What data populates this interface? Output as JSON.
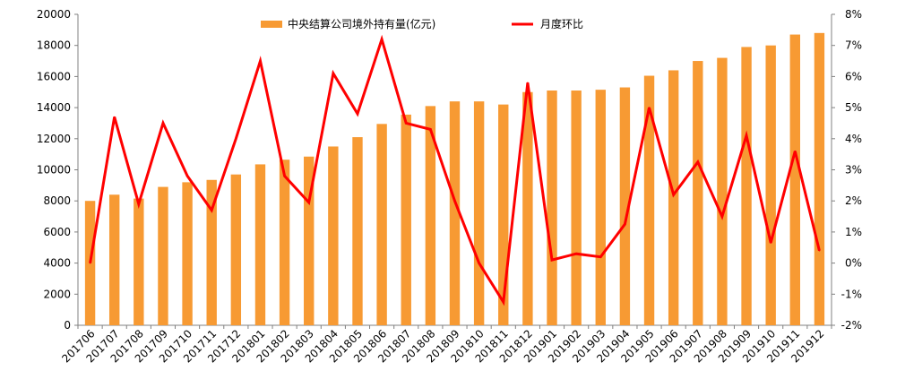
{
  "chart_data": {
    "type": "bar+line",
    "categories": [
      "201706",
      "201707",
      "201708",
      "201709",
      "201710",
      "201711",
      "201712",
      "201801",
      "201802",
      "201803",
      "201804",
      "201805",
      "201806",
      "201807",
      "201808",
      "201809",
      "201810",
      "201811",
      "201812",
      "201901",
      "201902",
      "201903",
      "201904",
      "201905",
      "201906",
      "201907",
      "201908",
      "201909",
      "201910",
      "201911",
      "201912"
    ],
    "series": [
      {
        "name": "中央结算公司境外持有量(亿元)",
        "type": "bar",
        "axis": "left",
        "color": "#F79A33",
        "values": [
          8000,
          8400,
          8150,
          8900,
          9200,
          9350,
          9700,
          10350,
          10650,
          10850,
          11500,
          12100,
          12950,
          13550,
          14100,
          14400,
          14400,
          14200,
          15000,
          15100,
          15100,
          15150,
          15300,
          16050,
          16400,
          17000,
          17200,
          17900,
          18000,
          18700,
          18800
        ]
      },
      {
        "name": "月度环比",
        "type": "line",
        "axis": "right",
        "color": "#FF0000",
        "values": [
          0.0,
          4.7,
          1.9,
          4.5,
          2.8,
          1.7,
          4.0,
          6.5,
          2.8,
          1.95,
          6.1,
          4.8,
          7.2,
          4.5,
          4.3,
          2.0,
          0.0,
          -1.25,
          5.8,
          0.1,
          0.3,
          0.2,
          1.25,
          5.0,
          2.2,
          3.25,
          1.5,
          4.1,
          0.65,
          3.6,
          0.4
        ]
      }
    ],
    "left_axis": {
      "min": 0,
      "max": 20000,
      "step": 2000,
      "tick_labels": [
        "0",
        "2000",
        "4000",
        "6000",
        "8000",
        "10000",
        "12000",
        "14000",
        "16000",
        "18000",
        "20000"
      ]
    },
    "right_axis": {
      "min": -2,
      "max": 8,
      "step": 1,
      "tick_labels": [
        "-2%",
        "-1%",
        "0%",
        "1%",
        "2%",
        "3%",
        "4%",
        "5%",
        "6%",
        "7%",
        "8%"
      ]
    },
    "legend_placement": "top-center",
    "grid": false
  }
}
